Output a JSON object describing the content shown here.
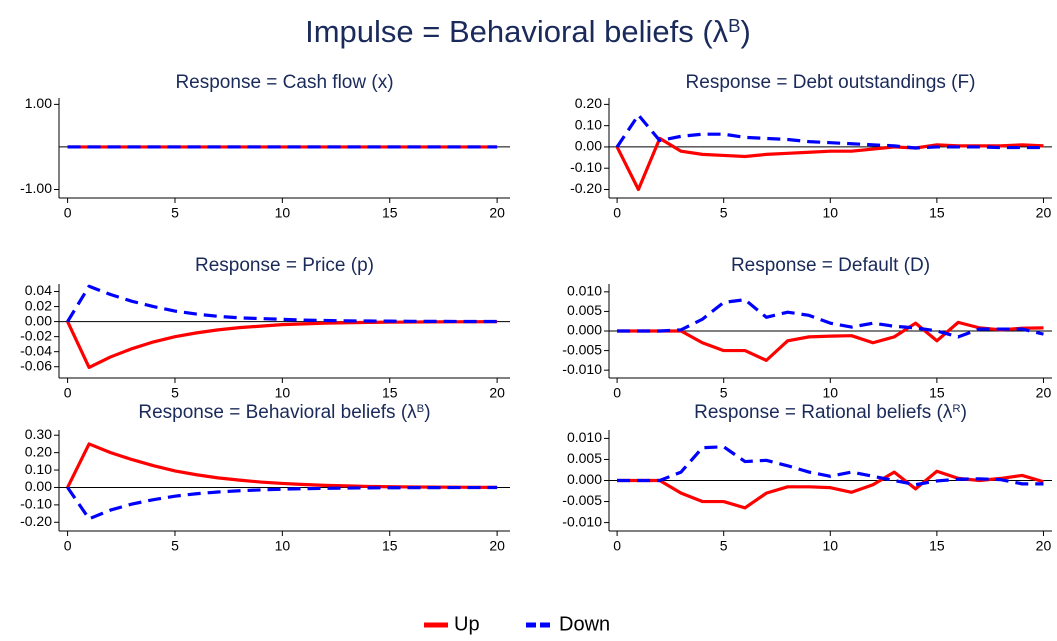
{
  "title": {
    "text": "Impulse = Behavioral beliefs (λ",
    "sup": "B",
    "tail": ")"
  },
  "chart_data": [
    {
      "type": "line",
      "title": {
        "text": "Response = Cash flow (x)"
      },
      "x": [
        0,
        1,
        2,
        3,
        4,
        5,
        6,
        7,
        8,
        9,
        10,
        11,
        12,
        13,
        14,
        15,
        16,
        17,
        18,
        19,
        20
      ],
      "xlim": [
        -0.4,
        20.6
      ],
      "xticks": [
        0,
        5,
        10,
        15,
        20
      ],
      "ylim": [
        -1.2,
        1.15
      ],
      "yticks": [
        {
          "value": -1,
          "label": "-1.00"
        },
        {
          "value": 1,
          "label": "1.00"
        }
      ],
      "series": [
        {
          "name": "Up",
          "color": "#ff0000",
          "values": [
            0,
            0,
            0,
            0,
            0,
            0,
            0,
            0,
            0,
            0,
            0,
            0,
            0,
            0,
            0,
            0,
            0,
            0,
            0,
            0,
            0
          ]
        },
        {
          "name": "Down",
          "color": "#0000ff",
          "values": [
            0,
            0,
            0,
            0,
            0,
            0,
            0,
            0,
            0,
            0,
            0,
            0,
            0,
            0,
            0,
            0,
            0,
            0,
            0,
            0,
            0
          ]
        }
      ]
    },
    {
      "type": "line",
      "title": {
        "text": "Response = Debt outstandings (F)"
      },
      "x": [
        0,
        1,
        2,
        3,
        4,
        5,
        6,
        7,
        8,
        9,
        10,
        11,
        12,
        13,
        14,
        15,
        16,
        17,
        18,
        19,
        20
      ],
      "xlim": [
        -0.38,
        20.4
      ],
      "xticks": [
        0,
        5,
        10,
        15,
        20
      ],
      "ylim": [
        -0.24,
        0.23
      ],
      "yticks": [
        {
          "value": -0.2,
          "label": "-0.20"
        },
        {
          "value": -0.1,
          "label": "-0.10"
        },
        {
          "value": 0,
          "label": "0.00"
        },
        {
          "value": 0.1,
          "label": "0.10"
        },
        {
          "value": 0.2,
          "label": "0.20"
        }
      ],
      "series": [
        {
          "name": "Up",
          "color": "#ff0000",
          "values": [
            0,
            -0.2,
            0.04,
            -0.02,
            -0.035,
            -0.04,
            -0.045,
            -0.035,
            -0.03,
            -0.025,
            -0.02,
            -0.02,
            -0.01,
            0.0,
            -0.005,
            0.01,
            0.005,
            0.005,
            0.005,
            0.01,
            0.005
          ]
        },
        {
          "name": "Down",
          "color": "#0000ff",
          "values": [
            0,
            0.15,
            0.03,
            0.05,
            0.06,
            0.06,
            0.045,
            0.04,
            0.035,
            0.025,
            0.02,
            0.015,
            0.01,
            0.005,
            -0.005,
            0.0,
            0.0,
            0.0,
            -0.003,
            -0.003,
            -0.003
          ]
        }
      ]
    },
    {
      "type": "line",
      "title": {
        "text": "Response = Price (p)"
      },
      "x": [
        0,
        1,
        2,
        3,
        4,
        5,
        6,
        7,
        8,
        9,
        10,
        11,
        12,
        13,
        14,
        15,
        16,
        17,
        18,
        19,
        20
      ],
      "xlim": [
        -0.4,
        20.6
      ],
      "xticks": [
        0,
        5,
        10,
        15,
        20
      ],
      "ylim": [
        -0.075,
        0.05
      ],
      "yticks": [
        {
          "value": -0.06,
          "label": "-0.06"
        },
        {
          "value": -0.04,
          "label": "-0.04"
        },
        {
          "value": -0.02,
          "label": "-0.02"
        },
        {
          "value": 0,
          "label": "0.00"
        },
        {
          "value": 0.02,
          "label": "0.02"
        },
        {
          "value": 0.04,
          "label": "0.04"
        }
      ],
      "series": [
        {
          "name": "Up",
          "color": "#ff0000",
          "values": [
            0,
            -0.061,
            -0.047,
            -0.036,
            -0.027,
            -0.02,
            -0.015,
            -0.011,
            -0.008,
            -0.006,
            -0.004,
            -0.003,
            -0.002,
            -0.0015,
            -0.001,
            -0.0008,
            -0.0006,
            -0.0004,
            -0.0003,
            -0.0002,
            -0.0001
          ]
        },
        {
          "name": "Down",
          "color": "#0000ff",
          "values": [
            0,
            0.047,
            0.036,
            0.027,
            0.02,
            0.014,
            0.01,
            0.007,
            0.005,
            0.004,
            0.003,
            0.002,
            0.0015,
            0.001,
            0.0008,
            0.0006,
            0.0004,
            0.0003,
            0.0002,
            0.0001,
            0.0001
          ]
        }
      ]
    },
    {
      "type": "line",
      "title": {
        "text": "Response = Default (D)"
      },
      "x": [
        0,
        1,
        2,
        3,
        4,
        5,
        6,
        7,
        8,
        9,
        10,
        11,
        12,
        13,
        14,
        15,
        16,
        17,
        18,
        19,
        20
      ],
      "xlim": [
        -0.38,
        20.4
      ],
      "xticks": [
        0,
        5,
        10,
        15,
        20
      ],
      "ylim": [
        -0.012,
        0.012
      ],
      "yticks": [
        {
          "value": -0.01,
          "label": "-0.010"
        },
        {
          "value": -0.005,
          "label": "-0.005"
        },
        {
          "value": 0,
          "label": "0.000"
        },
        {
          "value": 0.005,
          "label": "0.005"
        },
        {
          "value": 0.01,
          "label": "0.010"
        }
      ],
      "series": [
        {
          "name": "Up",
          "color": "#ff0000",
          "values": [
            0,
            0,
            0,
            0,
            -0.003,
            -0.005,
            -0.005,
            -0.0075,
            -0.0025,
            -0.0015,
            -0.0013,
            -0.0012,
            -0.003,
            -0.0015,
            0.002,
            -0.0025,
            0.0022,
            0.0008,
            0.0003,
            0.0007,
            0.0008
          ]
        },
        {
          "name": "Down",
          "color": "#0000ff",
          "values": [
            0,
            0,
            0,
            0.0003,
            0.003,
            0.0073,
            0.008,
            0.0035,
            0.0048,
            0.004,
            0.002,
            0.001,
            0.002,
            0.0012,
            0.0008,
            0.0,
            -0.0015,
            0.0005,
            0.0005,
            0.0005,
            -0.0008
          ]
        }
      ]
    },
    {
      "type": "line",
      "title": {
        "text": "Response = Behavioral beliefs (λ",
        "sup": "B",
        "tail": ")"
      },
      "x": [
        0,
        1,
        2,
        3,
        4,
        5,
        6,
        7,
        8,
        9,
        10,
        11,
        12,
        13,
        14,
        15,
        16,
        17,
        18,
        19,
        20
      ],
      "xlim": [
        -0.4,
        20.6
      ],
      "xticks": [
        0,
        5,
        10,
        15,
        20
      ],
      "ylim": [
        -0.25,
        0.33
      ],
      "yticks": [
        {
          "value": -0.2,
          "label": "-0.20"
        },
        {
          "value": -0.1,
          "label": "-0.10"
        },
        {
          "value": 0,
          "label": "0.00"
        },
        {
          "value": 0.1,
          "label": "0.10"
        },
        {
          "value": 0.2,
          "label": "0.20"
        },
        {
          "value": 0.3,
          "label": "0.30"
        }
      ],
      "series": [
        {
          "name": "Up",
          "color": "#ff0000",
          "values": [
            0,
            0.25,
            0.2,
            0.16,
            0.125,
            0.095,
            0.073,
            0.055,
            0.042,
            0.031,
            0.023,
            0.017,
            0.012,
            0.009,
            0.006,
            0.004,
            0.003,
            0.002,
            0.0015,
            0.001,
            0.0005
          ]
        },
        {
          "name": "Down",
          "color": "#0000ff",
          "values": [
            0,
            -0.18,
            -0.13,
            -0.095,
            -0.07,
            -0.05,
            -0.036,
            -0.026,
            -0.019,
            -0.014,
            -0.01,
            -0.007,
            -0.005,
            -0.0035,
            -0.0025,
            -0.0018,
            -0.0013,
            -0.0009,
            -0.0006,
            -0.0004,
            -0.0003
          ]
        }
      ]
    },
    {
      "type": "line",
      "title": {
        "text": "Response = Rational beliefs (λ",
        "sup": "R",
        "tail": ")"
      },
      "x": [
        0,
        1,
        2,
        3,
        4,
        5,
        6,
        7,
        8,
        9,
        10,
        11,
        12,
        13,
        14,
        15,
        16,
        17,
        18,
        19,
        20
      ],
      "xlim": [
        -0.38,
        20.4
      ],
      "xticks": [
        0,
        5,
        10,
        15,
        20
      ],
      "ylim": [
        -0.012,
        0.012
      ],
      "yticks": [
        {
          "value": -0.01,
          "label": "-0.010"
        },
        {
          "value": -0.005,
          "label": "-0.005"
        },
        {
          "value": 0,
          "label": "0.000"
        },
        {
          "value": 0.005,
          "label": "0.005"
        },
        {
          "value": 0.01,
          "label": "0.010"
        }
      ],
      "series": [
        {
          "name": "Up",
          "color": "#ff0000",
          "values": [
            0,
            0,
            0,
            -0.003,
            -0.005,
            -0.005,
            -0.0065,
            -0.003,
            -0.0015,
            -0.0015,
            -0.0017,
            -0.0028,
            -0.001,
            0.002,
            -0.002,
            0.0022,
            0.0005,
            0.0,
            0.0005,
            0.0012,
            -0.0003
          ]
        },
        {
          "name": "Down",
          "color": "#0000ff",
          "values": [
            0,
            0,
            0,
            0.002,
            0.0078,
            0.008,
            0.0045,
            0.0048,
            0.0035,
            0.002,
            0.001,
            0.002,
            0.001,
            0.0,
            -0.001,
            -0.0001,
            0.0003,
            0.0004,
            0.0002,
            -0.0008,
            -0.0008
          ]
        }
      ]
    }
  ]
}
